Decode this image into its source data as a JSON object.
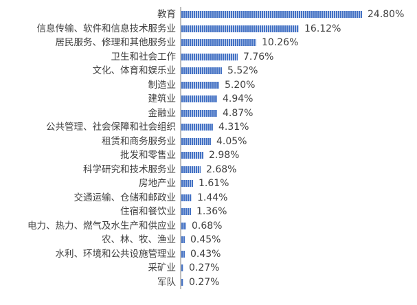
{
  "chart_data": {
    "type": "bar",
    "orientation": "horizontal",
    "title": "",
    "xlabel": "",
    "ylabel": "",
    "grid": false,
    "legend": null,
    "bar_color": "#4472c4",
    "value_format": "percent",
    "categories": [
      "教育",
      "信息传输、软件和信息技术服务业",
      "居民服务、修理和其他服务业",
      "卫生和社会工作",
      "文化、体育和娱乐业",
      "制造业",
      "建筑业",
      "金融业",
      "公共管理、社会保障和社会组织",
      "租赁和商务服务业",
      "批发和零售业",
      "科学研究和技术服务业",
      "房地产业",
      "交通运输、仓储和邮政业",
      "住宿和餐饮业",
      "电力、热力、燃气及水生产和供应业",
      "农、林、牧、渔业",
      "水利、环境和公共设施管理业",
      "采矿业",
      "军队"
    ],
    "values": [
      24.8,
      16.12,
      10.26,
      7.76,
      5.52,
      5.2,
      4.94,
      4.87,
      4.31,
      4.05,
      2.98,
      2.68,
      1.61,
      1.44,
      1.36,
      0.68,
      0.45,
      0.43,
      0.27,
      0.27
    ],
    "labels": [
      "24.80%",
      "16.12%",
      "10.26%",
      "7.76%",
      "5.52%",
      "5.20%",
      "4.94%",
      "4.87%",
      "4.31%",
      "4.05%",
      "2.98%",
      "2.68%",
      "1.61%",
      "1.44%",
      "1.36%",
      "0.68%",
      "0.45%",
      "0.43%",
      "0.27%",
      "0.27%"
    ]
  }
}
